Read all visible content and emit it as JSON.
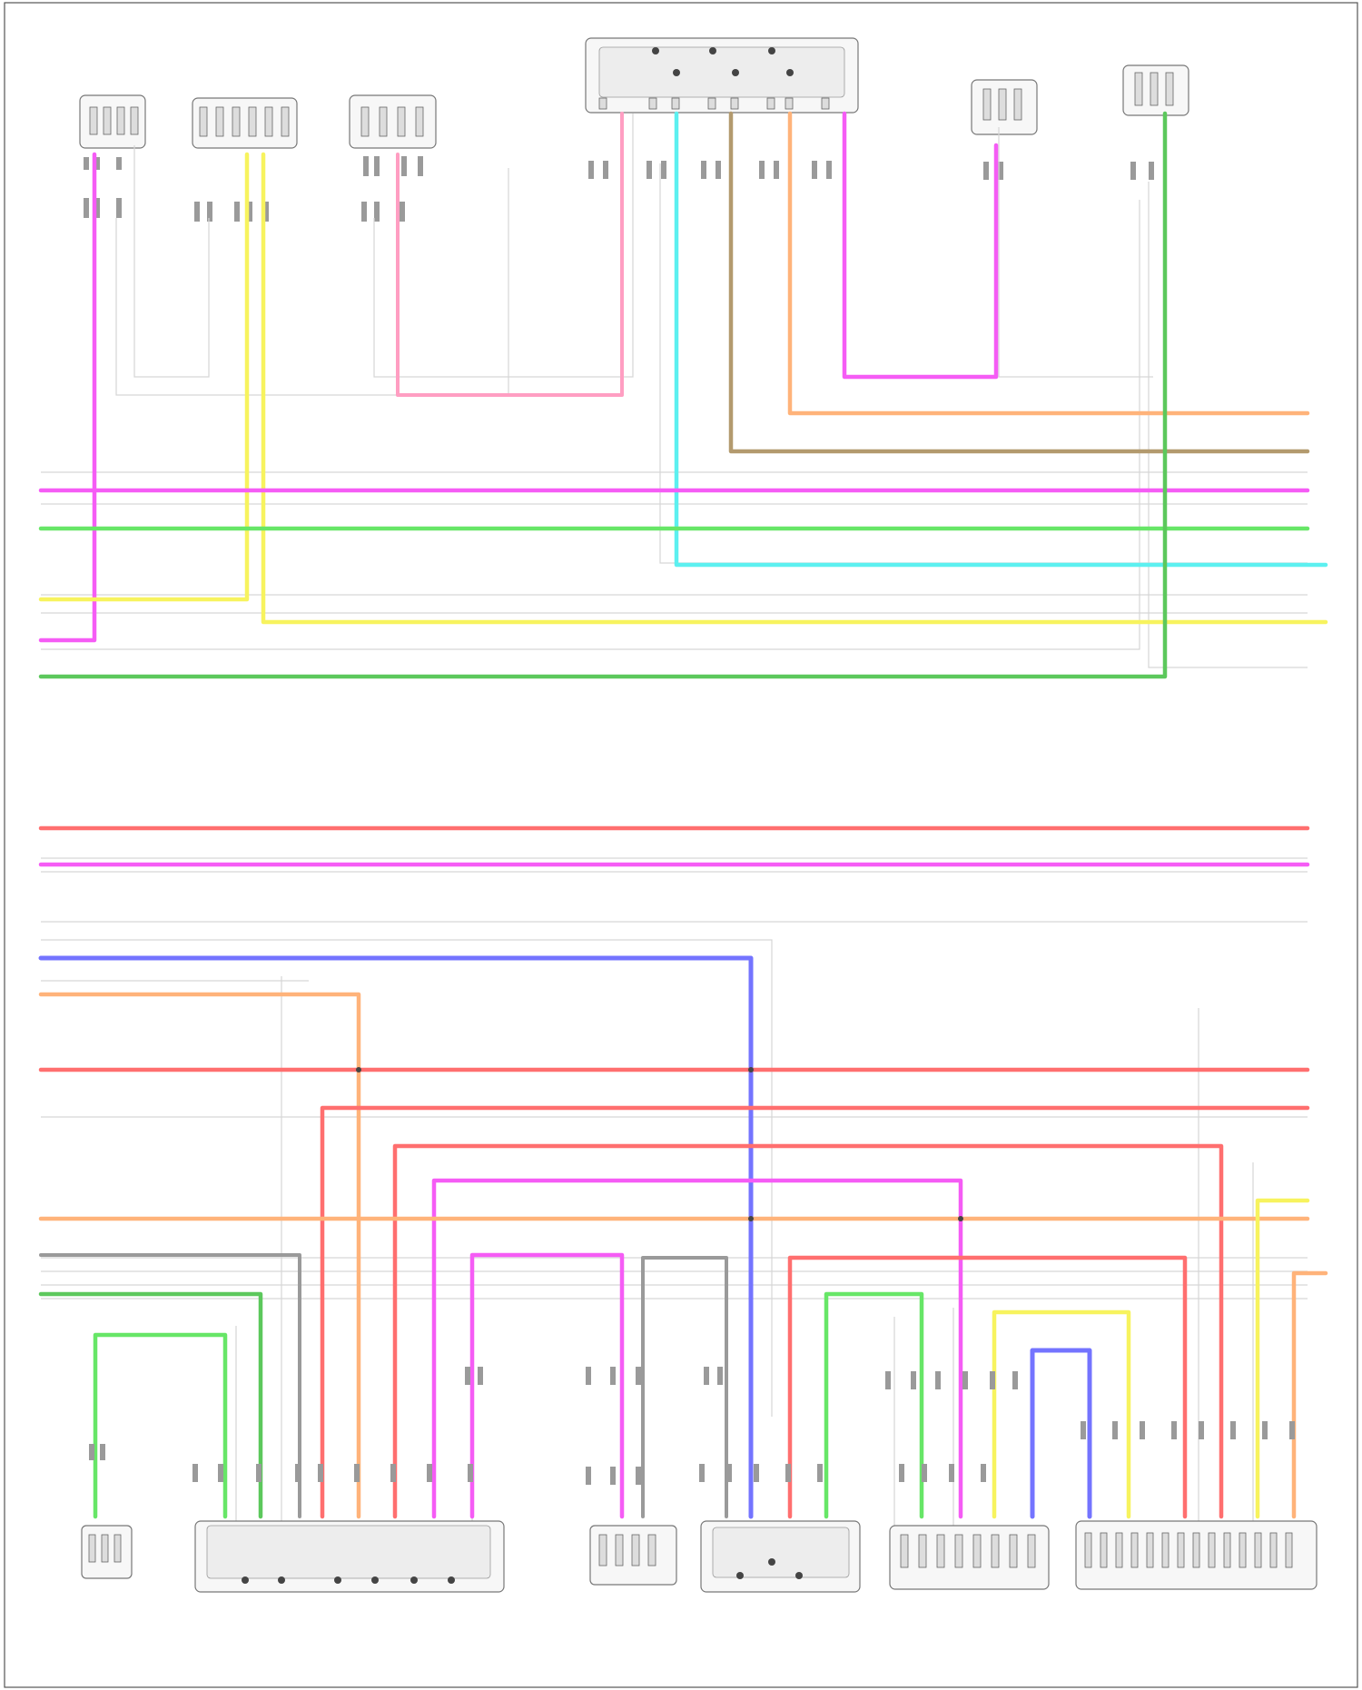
{
  "footer_code": "",
  "colors": {
    "magenta": "#f55cf5",
    "pink": "#ff9ec2",
    "yellow": "#f7f35e",
    "green": "#67e667",
    "dark_green": "#5cc85c",
    "cyan": "#5cf0f0",
    "orange": "#ffb37a",
    "olive": "#b39a6e",
    "red": "#ff6f6f",
    "blue": "#7474ff",
    "gray": "#9a9a9a",
    "lavender": "#b8b8ff"
  },
  "components_top": [
    {
      "id": "c1",
      "label": ""
    },
    {
      "id": "c2",
      "label": ""
    },
    {
      "id": "c3",
      "label": ""
    },
    {
      "id": "c4",
      "label": ""
    },
    {
      "id": "c5",
      "label": ""
    },
    {
      "id": "c6",
      "label": ""
    }
  ],
  "components_bottom": [
    {
      "id": "b1",
      "label": ""
    },
    {
      "id": "b2",
      "label": ""
    },
    {
      "id": "b3",
      "label": ""
    },
    {
      "id": "b4",
      "label": ""
    },
    {
      "id": "b5",
      "label": ""
    },
    {
      "id": "b6",
      "label": ""
    }
  ]
}
